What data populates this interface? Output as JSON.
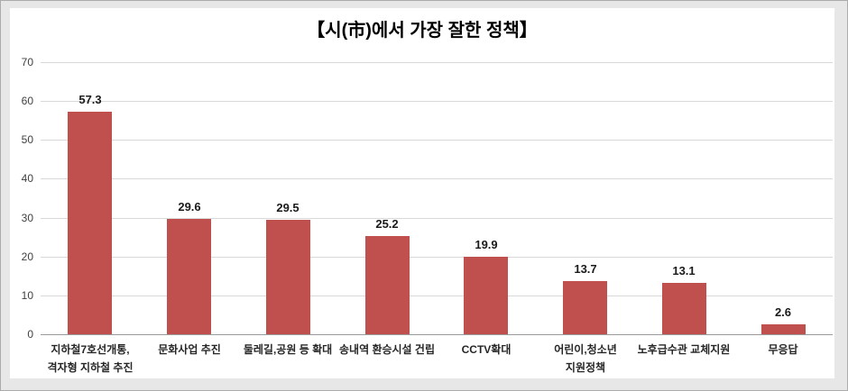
{
  "window": {
    "background_color": "#E7E7E7",
    "border_color": "#ABABAB",
    "canvas_color": "#FFFFFF"
  },
  "chart_data": {
    "type": "bar",
    "title": "【시(市)에서 가장 잘한 정책】",
    "categories": [
      "지하철7호선개통,\n격자형 지하철 추진",
      "문화사업 추진",
      "둘레길,공원 등 확대",
      "송내역 환승시설 건립",
      "CCTV확대",
      "어린이,청소년\n지원정책",
      "노후급수관 교체지원",
      "무응답"
    ],
    "values": [
      57.3,
      29.6,
      29.5,
      25.2,
      19.9,
      13.7,
      13.1,
      2.6
    ],
    "value_labels": [
      "57.3",
      "29.6",
      "29.5",
      "25.2",
      "19.9",
      "13.7",
      "13.1",
      "2.6"
    ],
    "xlabel": "",
    "ylabel": "",
    "ylim": [
      0,
      70
    ],
    "yticks": [
      0,
      10,
      20,
      30,
      40,
      50,
      60,
      70
    ],
    "grid": true,
    "legend_position": "none",
    "colors": {
      "bar": "#C0504D",
      "gridline": "#D9D9D9",
      "axis_line": "#9B9B9B",
      "title_text": "#000000",
      "tick_text": "#404040",
      "value_text": "#1A1A1A",
      "category_text": "#262626"
    }
  }
}
